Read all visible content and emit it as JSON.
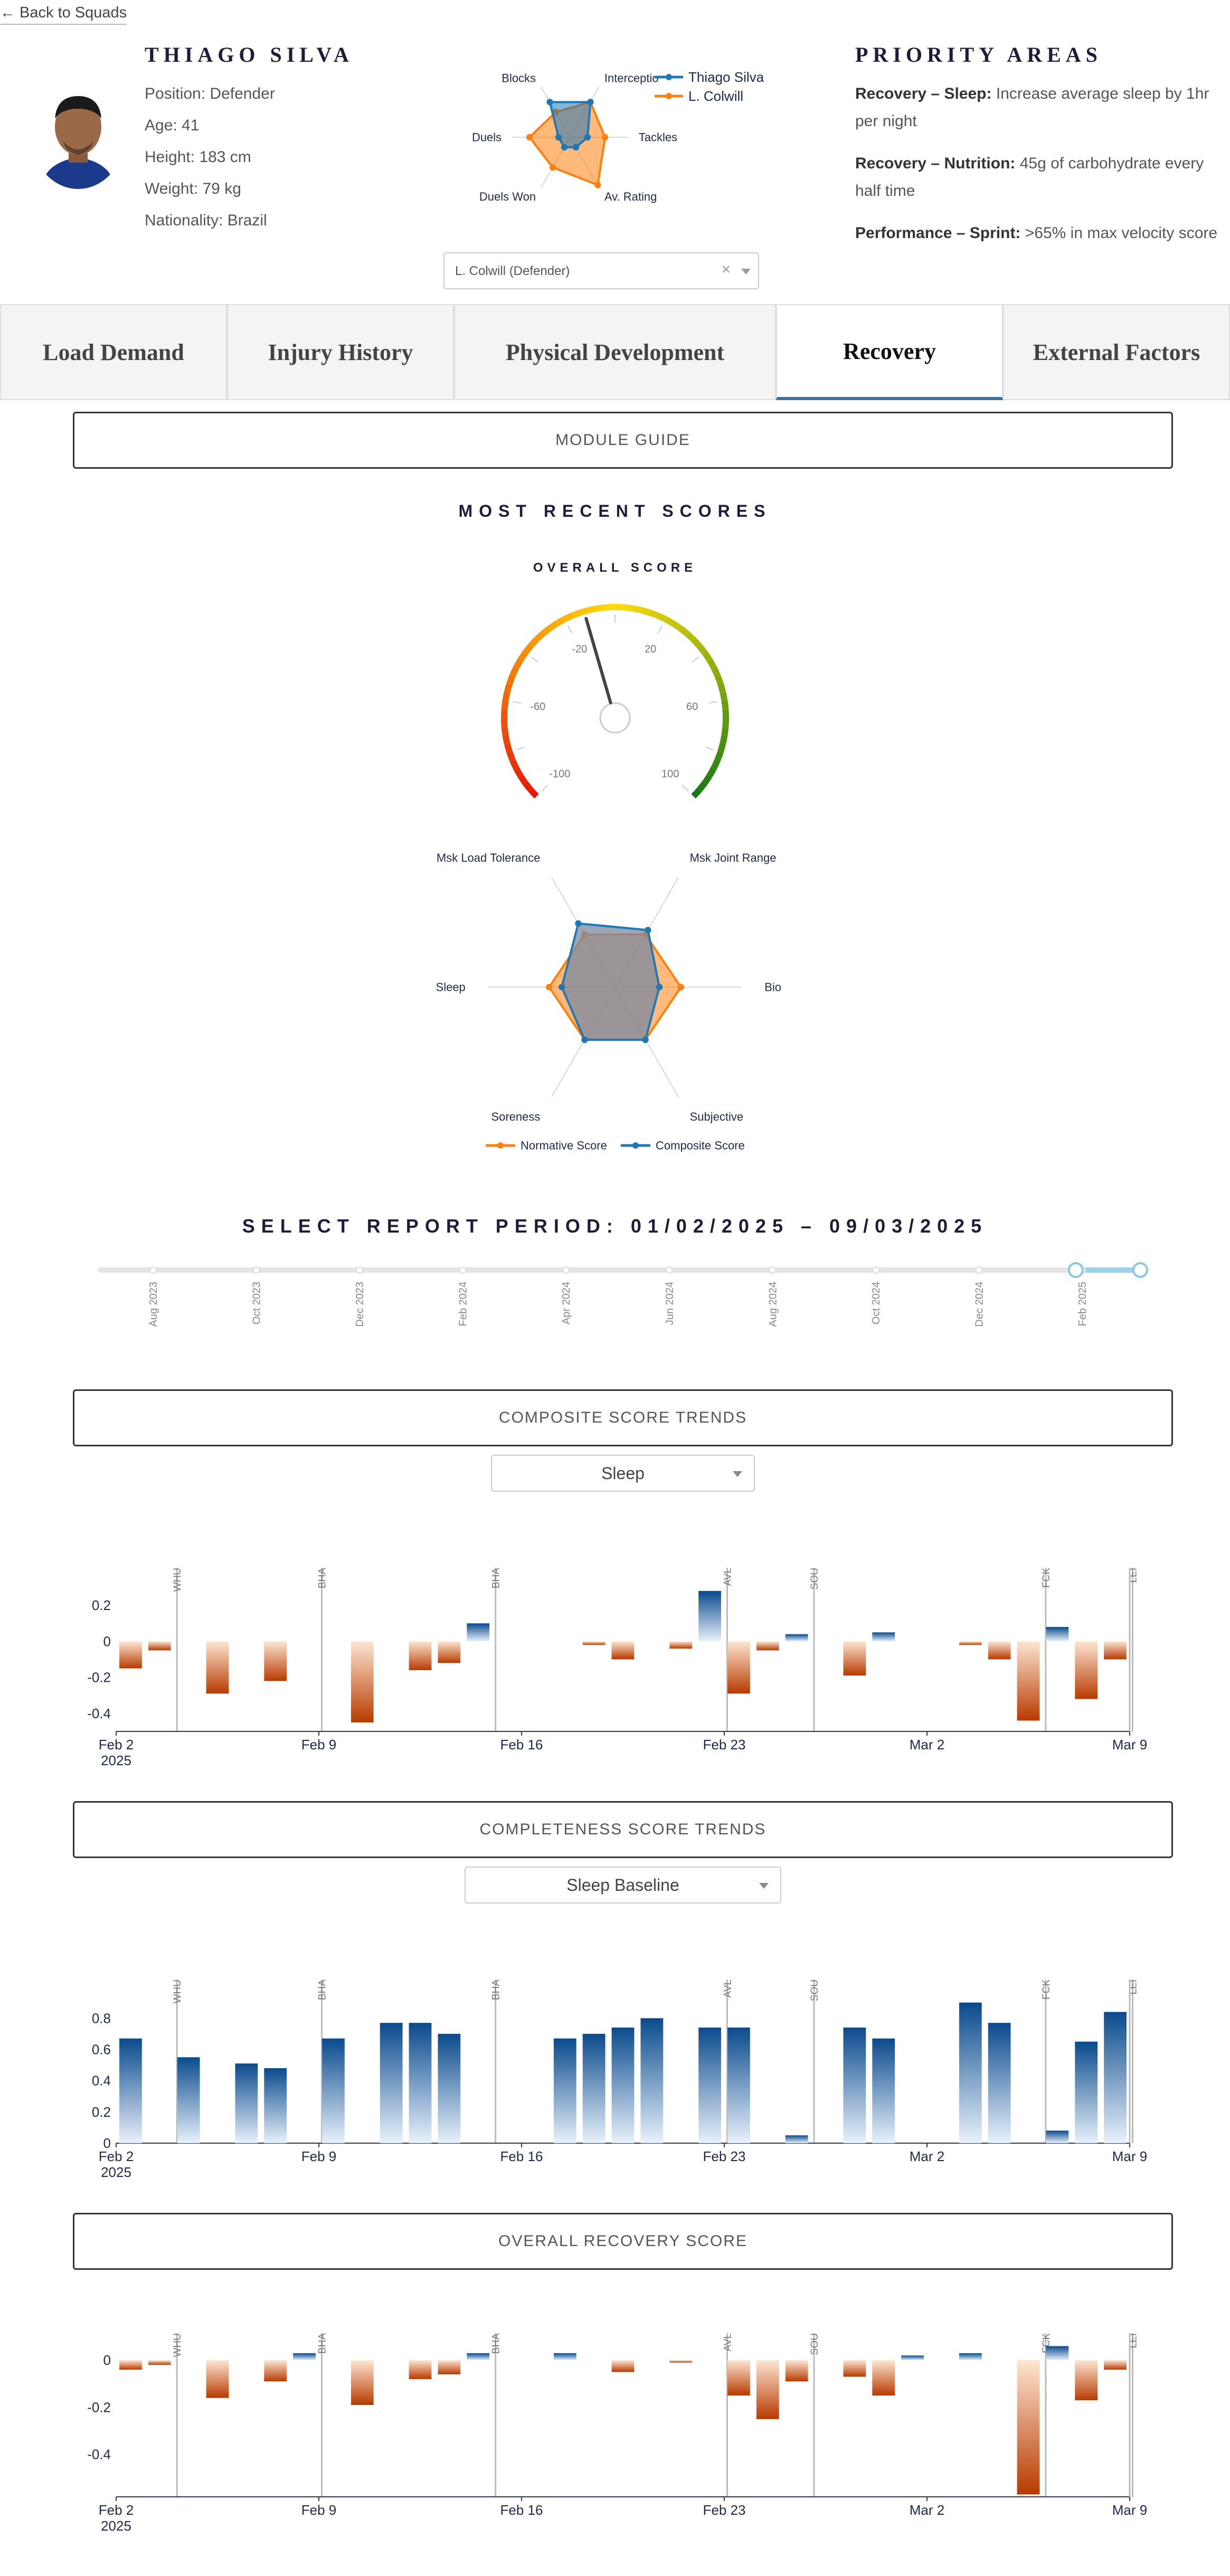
{
  "nav": {
    "back_label": "← Back to Squads"
  },
  "player": {
    "name": "THIAGO SILVA",
    "position": "Position: Defender",
    "age": "Age: 41",
    "height": "Height: 183 cm",
    "weight": "Weight: 79 kg",
    "nationality": "Nationality: Brazil"
  },
  "compare": {
    "selected": "L. Colwill (Defender)",
    "clear_glyph": "×"
  },
  "priority": {
    "title": "PRIORITY AREAS",
    "items": [
      {
        "label": "Recovery – Sleep:",
        "text": " Increase average sleep by 1hr per night"
      },
      {
        "label": "Recovery – Nutrition:",
        "text": " 45g of carbohydrate every half time"
      },
      {
        "label": "Performance – Sprint:",
        "text": " >65% in max velocity score"
      }
    ]
  },
  "tabs": [
    {
      "label": "Load Demand",
      "active": false
    },
    {
      "label": "Injury History",
      "active": false
    },
    {
      "label": "Physical Development",
      "active": false
    },
    {
      "label": "Recovery",
      "active": true
    },
    {
      "label": "External Factors",
      "active": false
    }
  ],
  "module_guide": {
    "label": "MODULE GUIDE"
  },
  "recent": {
    "title": "MOST RECENT SCORES",
    "overall_label": "OVERALL SCORE"
  },
  "period": {
    "title": "SELECT REPORT PERIOD: 01/02/2025 – 09/03/2025",
    "ticks": [
      "Aug 2023",
      "Oct 2023",
      "Dec 2023",
      "Feb 2024",
      "Apr 2024",
      "Jun 2024",
      "Aug 2024",
      "Oct 2024",
      "Dec 2024",
      "Feb 2025"
    ],
    "range_start": 0.938,
    "range_end": 1.0
  },
  "sections": {
    "composite": {
      "title": "COMPOSITE SCORE TRENDS",
      "dropdown": "Sleep"
    },
    "completeness": {
      "title": "COMPLETENESS SCORE TRENDS",
      "dropdown": "Sleep Baseline"
    },
    "overall": {
      "title": "OVERALL RECOVERY SCORE"
    }
  },
  "colors": {
    "blue": "#1f77b4",
    "orange": "#ff7f0e",
    "navy": "#1d1d3a",
    "bar_blue_dark": "#0a4a8c",
    "bar_orange_dark": "#b83a00"
  },
  "chart_data": [
    {
      "id": "mini_radar",
      "type": "radar",
      "axes": [
        "Interceptio",
        "Tackles",
        "Av. Rating",
        "Duels Won",
        "Duels",
        "Blocks"
      ],
      "legend_position": "top-right",
      "series": [
        {
          "name": "Thiago Silva",
          "values": [
            0.7,
            0.3,
            0.2,
            0.2,
            0.2,
            0.7
          ]
        },
        {
          "name": "L. Colwill",
          "values": [
            0.7,
            0.6,
            0.95,
            0.6,
            0.7,
            0.5
          ]
        }
      ]
    },
    {
      "id": "overall_gauge",
      "type": "gauge",
      "title": "OVERALL SCORE",
      "range": [
        -100,
        100
      ],
      "ticks": [
        -100,
        -60,
        -20,
        20,
        60,
        100
      ],
      "value": -12
    },
    {
      "id": "recovery_radar",
      "type": "radar",
      "axes": [
        "Msk Joint Range",
        "Bio",
        "Subjective",
        "Soreness",
        "Sleep",
        "Msk Load Tolerance"
      ],
      "legend_position": "bottom",
      "series": [
        {
          "name": "Normative Score",
          "values": [
            0.48,
            0.52,
            0.48,
            0.48,
            0.52,
            0.48
          ]
        },
        {
          "name": "Composite Score",
          "values": [
            0.52,
            0.35,
            0.48,
            0.48,
            0.42,
            0.58
          ]
        }
      ]
    },
    {
      "id": "composite_trends",
      "type": "bar",
      "title": "COMPOSITE SCORE TRENDS",
      "x_range": [
        "2025-02-02",
        "2025-03-09"
      ],
      "x_ticks": [
        [
          "Feb 2",
          "2025"
        ],
        [
          "Feb 9"
        ],
        [
          "Feb 16"
        ],
        [
          "Feb 23"
        ],
        [
          "Mar 2"
        ],
        [
          "Mar 9"
        ]
      ],
      "ylim": [
        -0.5,
        0.35
      ],
      "y_ticks": [
        0.2,
        0,
        -0.2,
        -0.4
      ],
      "events": [
        [
          "WHU",
          "2025-02-04"
        ],
        [
          "BHA",
          "2025-02-09"
        ],
        [
          "BHA",
          "2025-02-15"
        ],
        [
          "AVL",
          "2025-02-23"
        ],
        [
          "SOU",
          "2025-02-26"
        ],
        [
          "FCK",
          "2025-03-06"
        ],
        [
          "LEI",
          "2025-03-09"
        ]
      ],
      "bars": [
        [
          "2025-02-02",
          -0.15
        ],
        [
          "2025-02-03",
          -0.05
        ],
        [
          "2025-02-05",
          -0.29
        ],
        [
          "2025-02-07",
          -0.22
        ],
        [
          "2025-02-10",
          -0.45
        ],
        [
          "2025-02-12",
          -0.16
        ],
        [
          "2025-02-13",
          -0.12
        ],
        [
          "2025-02-14",
          0.1
        ],
        [
          "2025-02-18",
          -0.02
        ],
        [
          "2025-02-19",
          -0.1
        ],
        [
          "2025-02-21",
          -0.04
        ],
        [
          "2025-02-22",
          0.28
        ],
        [
          "2025-02-23",
          -0.29
        ],
        [
          "2025-02-24",
          -0.05
        ],
        [
          "2025-02-25",
          0.04
        ],
        [
          "2025-02-27",
          -0.19
        ],
        [
          "2025-02-28",
          0.05
        ],
        [
          "2025-03-03",
          -0.02
        ],
        [
          "2025-03-04",
          -0.1
        ],
        [
          "2025-03-05",
          -0.44
        ],
        [
          "2025-03-06",
          0.08
        ],
        [
          "2025-03-07",
          -0.32
        ],
        [
          "2025-03-08",
          -0.1
        ]
      ]
    },
    {
      "id": "completeness_trends",
      "type": "bar",
      "title": "COMPLETENESS SCORE TRENDS",
      "x_range": [
        "2025-02-02",
        "2025-03-09"
      ],
      "x_ticks": [
        [
          "Feb 2",
          "2025"
        ],
        [
          "Feb 9"
        ],
        [
          "Feb 16"
        ],
        [
          "Feb 23"
        ],
        [
          "Mar 2"
        ],
        [
          "Mar 9"
        ]
      ],
      "ylim": [
        0,
        0.98
      ],
      "y_ticks": [
        0.8,
        0.6,
        0.4,
        0.2,
        0
      ],
      "events": [
        [
          "WHU",
          "2025-02-04"
        ],
        [
          "BHA",
          "2025-02-09"
        ],
        [
          "BHA",
          "2025-02-15"
        ],
        [
          "AVL",
          "2025-02-23"
        ],
        [
          "SOU",
          "2025-02-26"
        ],
        [
          "FCK",
          "2025-03-06"
        ],
        [
          "LEI",
          "2025-03-09"
        ]
      ],
      "bars": [
        [
          "2025-02-02",
          0.67
        ],
        [
          "2025-02-04",
          0.55
        ],
        [
          "2025-02-06",
          0.51
        ],
        [
          "2025-02-07",
          0.48
        ],
        [
          "2025-02-09",
          0.67
        ],
        [
          "2025-02-11",
          0.77
        ],
        [
          "2025-02-12",
          0.77
        ],
        [
          "2025-02-13",
          0.7
        ],
        [
          "2025-02-17",
          0.67
        ],
        [
          "2025-02-18",
          0.7
        ],
        [
          "2025-02-19",
          0.74
        ],
        [
          "2025-02-20",
          0.8
        ],
        [
          "2025-02-22",
          0.74
        ],
        [
          "2025-02-23",
          0.74
        ],
        [
          "2025-02-25",
          0.05
        ],
        [
          "2025-02-27",
          0.74
        ],
        [
          "2025-02-28",
          0.67
        ],
        [
          "2025-03-03",
          0.9
        ],
        [
          "2025-03-04",
          0.77
        ],
        [
          "2025-03-06",
          0.08
        ],
        [
          "2025-03-07",
          0.65
        ],
        [
          "2025-03-08",
          0.84
        ]
      ]
    },
    {
      "id": "overall_recovery",
      "type": "bar",
      "title": "OVERALL RECOVERY SCORE",
      "x_range": [
        "2025-02-02",
        "2025-03-09"
      ],
      "x_ticks": [
        [
          "Feb 2",
          "2025"
        ],
        [
          "Feb 9"
        ],
        [
          "Feb 16"
        ],
        [
          "Feb 23"
        ],
        [
          "Mar 2"
        ],
        [
          "Mar 9"
        ]
      ],
      "ylim": [
        -0.58,
        0.07
      ],
      "y_ticks": [
        0,
        -0.2,
        -0.4
      ],
      "events": [
        [
          "WHU",
          "2025-02-04"
        ],
        [
          "BHA",
          "2025-02-09"
        ],
        [
          "BHA",
          "2025-02-15"
        ],
        [
          "AVL",
          "2025-02-23"
        ],
        [
          "SOU",
          "2025-02-26"
        ],
        [
          "FCK",
          "2025-03-06"
        ],
        [
          "LEI",
          "2025-03-09"
        ]
      ],
      "bars": [
        [
          "2025-02-02",
          -0.04
        ],
        [
          "2025-02-03",
          -0.02
        ],
        [
          "2025-02-05",
          -0.16
        ],
        [
          "2025-02-07",
          -0.09
        ],
        [
          "2025-02-08",
          0.03
        ],
        [
          "2025-02-10",
          -0.19
        ],
        [
          "2025-02-12",
          -0.08
        ],
        [
          "2025-02-13",
          -0.06
        ],
        [
          "2025-02-14",
          0.03
        ],
        [
          "2025-02-17",
          0.03
        ],
        [
          "2025-02-19",
          -0.05
        ],
        [
          "2025-02-21",
          -0.01
        ],
        [
          "2025-02-23",
          -0.15
        ],
        [
          "2025-02-24",
          -0.25
        ],
        [
          "2025-02-25",
          -0.09
        ],
        [
          "2025-02-27",
          -0.07
        ],
        [
          "2025-02-28",
          -0.15
        ],
        [
          "2025-03-01",
          0.02
        ],
        [
          "2025-03-03",
          0.03
        ],
        [
          "2025-03-05",
          -0.57
        ],
        [
          "2025-03-06",
          0.06
        ],
        [
          "2025-03-07",
          -0.17
        ],
        [
          "2025-03-08",
          -0.04
        ]
      ]
    }
  ]
}
